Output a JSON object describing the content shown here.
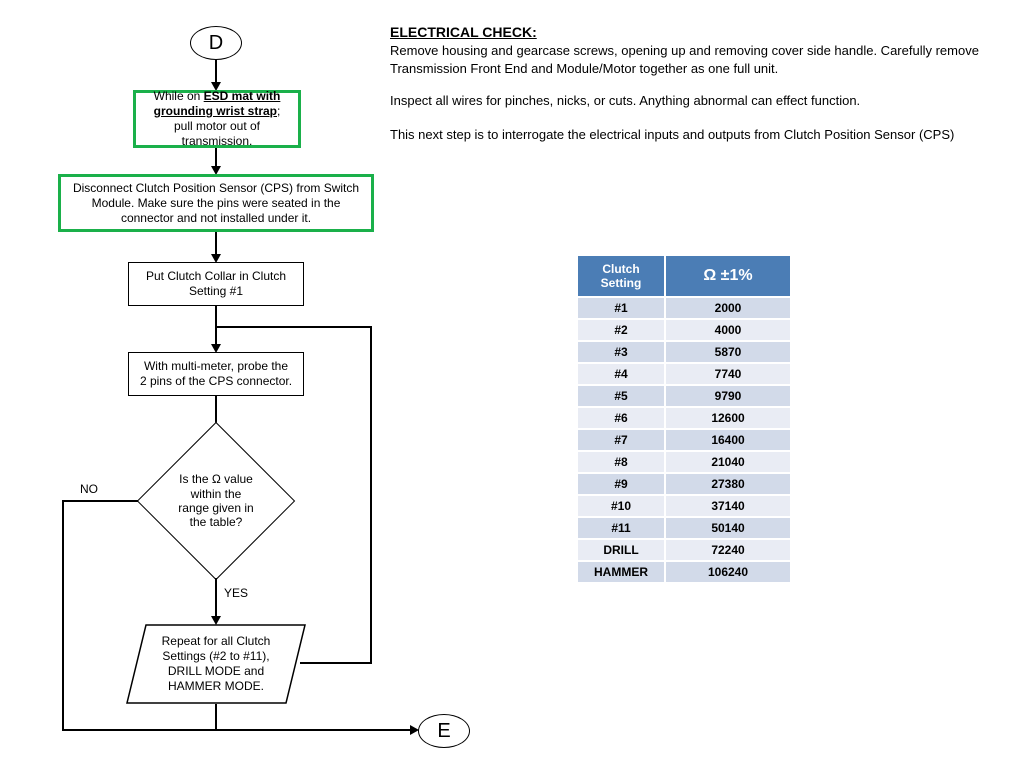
{
  "flow": {
    "terminal_start": "D",
    "terminal_end": "E",
    "step1_pre": "While on ",
    "step1_bold": "ESD mat with grounding wrist strap",
    "step1_post": "; pull motor out of transmission.",
    "step2": "Disconnect Clutch Position Sensor (CPS) from Switch Module.  Make sure the pins were seated in the connector and not installed under it.",
    "step3": "Put Clutch Collar in Clutch Setting #1",
    "step4": "With multi-meter, probe the 2 pins of the CPS connector.",
    "decision": "Is the Ω value within the range given in the table?",
    "no_label": "NO",
    "yes_label": "YES",
    "loop": "Repeat for all Clutch Settings (#2 to #11), DRILL MODE and HAMMER MODE."
  },
  "text": {
    "heading": "ELECTRICAL CHECK:",
    "p1": "Remove housing and gearcase screws, opening up and removing cover side handle.  Carefully remove Transmission Front End and Module/Motor together as one full unit.",
    "p2": "Inspect all wires for pinches, nicks, or cuts.  Anything abnormal can effect function.",
    "p3": "This next step is to interrogate the electrical inputs and outputs from Clutch Position Sensor (CPS)"
  },
  "table": {
    "header_left": "Clutch Setting",
    "header_right": "Ω ±1%",
    "rows": [
      {
        "setting": "#1",
        "value": "2000"
      },
      {
        "setting": "#2",
        "value": "4000"
      },
      {
        "setting": "#3",
        "value": "5870"
      },
      {
        "setting": "#4",
        "value": "7740"
      },
      {
        "setting": "#5",
        "value": "9790"
      },
      {
        "setting": "#6",
        "value": "12600"
      },
      {
        "setting": "#7",
        "value": "16400"
      },
      {
        "setting": "#8",
        "value": "21040"
      },
      {
        "setting": "#9",
        "value": "27380"
      },
      {
        "setting": "#10",
        "value": "37140"
      },
      {
        "setting": "#11",
        "value": "50140"
      },
      {
        "setting": "DRILL",
        "value": "72240"
      },
      {
        "setting": "HAMMER",
        "value": "106240"
      }
    ]
  },
  "style": {
    "accent_green": "#1ab04a",
    "table_header_bg": "#4b7db5",
    "row_odd_bg": "#d2dae9",
    "row_even_bg": "#e9ecf4",
    "background": "#ffffff",
    "line_color": "#000000"
  }
}
